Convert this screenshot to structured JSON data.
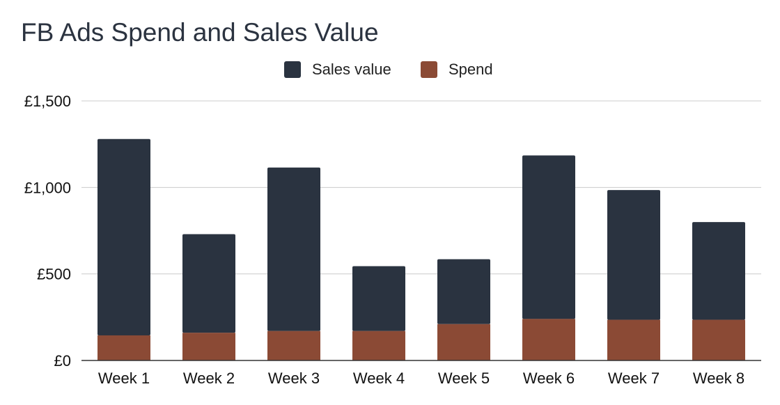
{
  "chart_data": {
    "type": "bar",
    "stacked": true,
    "title": "FB Ads Spend and Sales Value",
    "categories": [
      "Week 1",
      "Week 2",
      "Week 3",
      "Week 4",
      "Week 5",
      "Week 6",
      "Week 7",
      "Week 8"
    ],
    "series": [
      {
        "name": "Spend",
        "color": "#8b4a35",
        "values": [
          145,
          160,
          170,
          170,
          210,
          240,
          235,
          235
        ]
      },
      {
        "name": "Sales value",
        "color": "#2a3340",
        "values": [
          1135,
          570,
          945,
          375,
          375,
          945,
          750,
          565
        ]
      }
    ],
    "legend_order": [
      "Sales value",
      "Spend"
    ],
    "legend_position": "top",
    "ylim": [
      0,
      1500
    ],
    "y_ticks": [
      {
        "value": 0,
        "label": "£0"
      },
      {
        "value": 500,
        "label": "£500"
      },
      {
        "value": 1000,
        "label": "£1,000"
      },
      {
        "value": 1500,
        "label": "£1,500"
      }
    ],
    "grid": true,
    "xlabel": "",
    "ylabel": ""
  }
}
